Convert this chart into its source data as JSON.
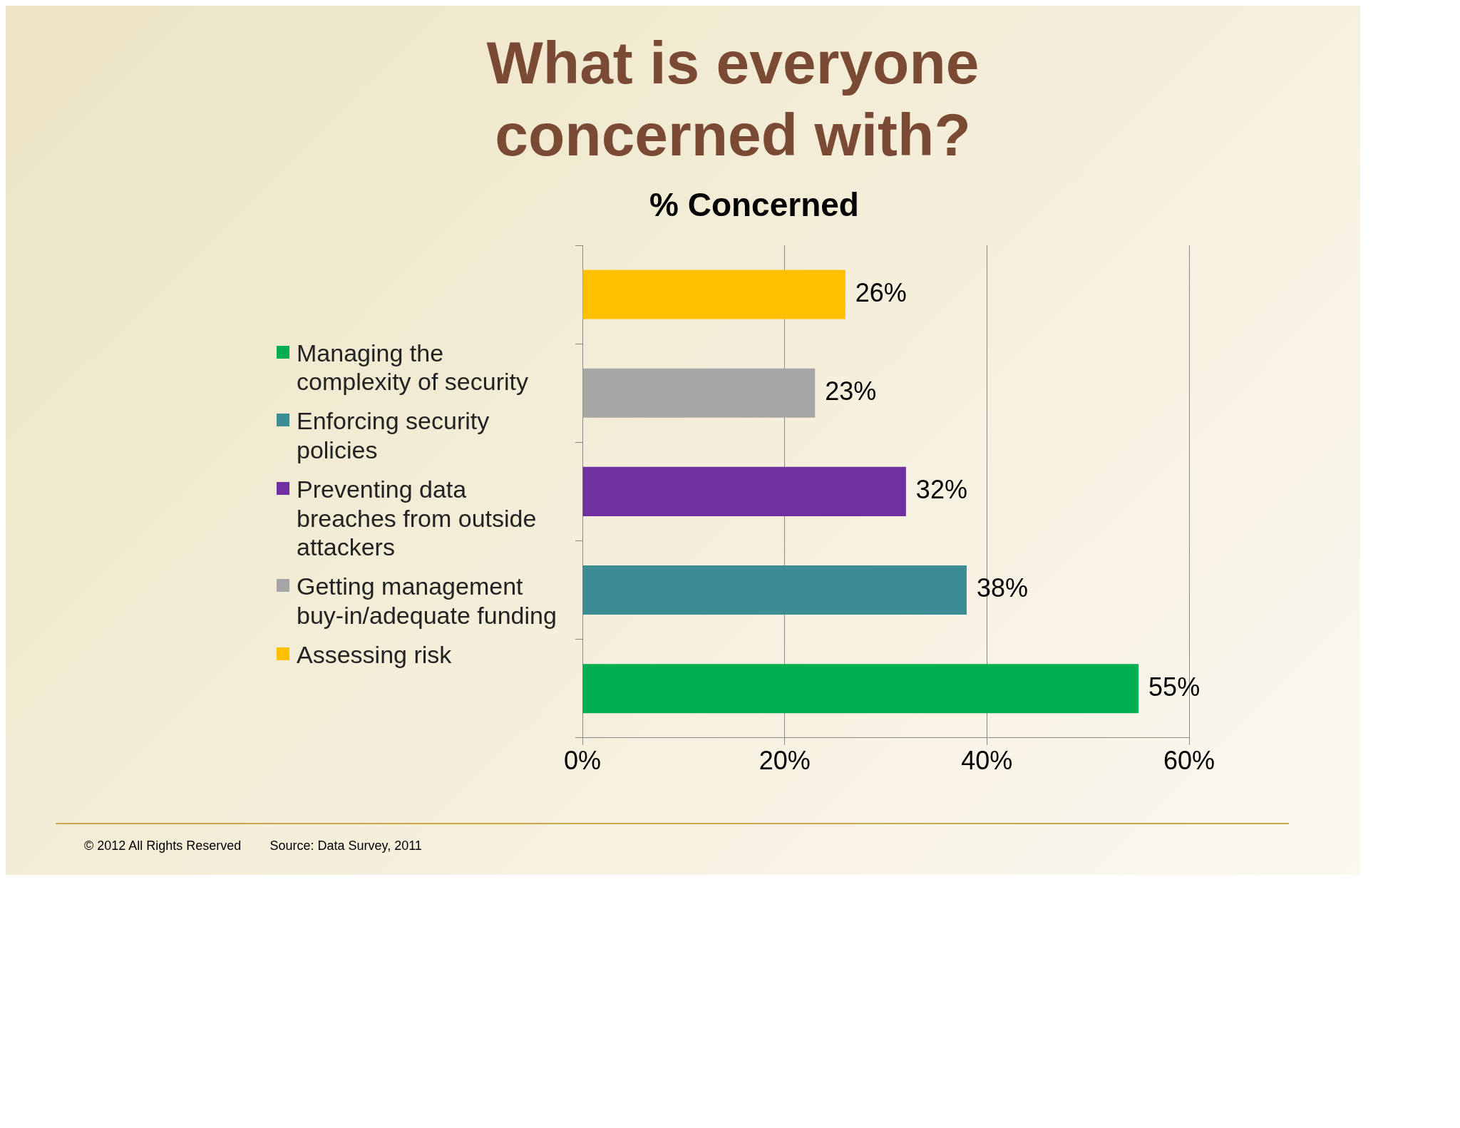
{
  "chart_data": {
    "type": "bar",
    "orientation": "horizontal",
    "title": "What is everyone concerned with?",
    "subtitle": "% Concerned",
    "categories": [
      null,
      null,
      null,
      null,
      null
    ],
    "series": [
      {
        "name": "Managing the complexity of security",
        "color": "#00b050",
        "values": [
          null,
          null,
          null,
          null,
          55
        ],
        "value_labels": [
          null,
          null,
          null,
          null,
          "55%"
        ]
      },
      {
        "name": "Enforcing security policies",
        "color": "#3c8d93",
        "values": [
          null,
          null,
          null,
          38,
          null
        ],
        "value_labels": [
          null,
          null,
          null,
          "38%",
          null
        ]
      },
      {
        "name": "Preventing data breaches from outside attackers",
        "color": "#7030a0",
        "values": [
          null,
          null,
          32,
          null,
          null
        ],
        "value_labels": [
          null,
          null,
          "32%",
          null,
          null
        ]
      },
      {
        "name": "Getting management buy-in/adequate funding",
        "color": "#a6a6a6",
        "values": [
          null,
          23,
          null,
          null,
          null
        ],
        "value_labels": [
          null,
          "23%",
          null,
          null,
          null
        ]
      },
      {
        "name": "Assessing risk",
        "color": "#ffc000",
        "values": [
          26,
          null,
          null,
          null,
          null
        ],
        "value_labels": [
          "26%",
          null,
          null,
          null,
          null
        ]
      }
    ],
    "xlim": [
      0,
      60
    ],
    "xticks": [
      {
        "value": 0,
        "label": "0%"
      },
      {
        "value": 20,
        "label": "20%"
      },
      {
        "value": 40,
        "label": "40%"
      },
      {
        "value": 60,
        "label": "60%"
      }
    ],
    "grid": "x",
    "legend": "left",
    "tick_labels": "x",
    "annotations": [
      "© 2012 All Rights Reserved",
      "Source: Data Survey, 2011"
    ]
  }
}
